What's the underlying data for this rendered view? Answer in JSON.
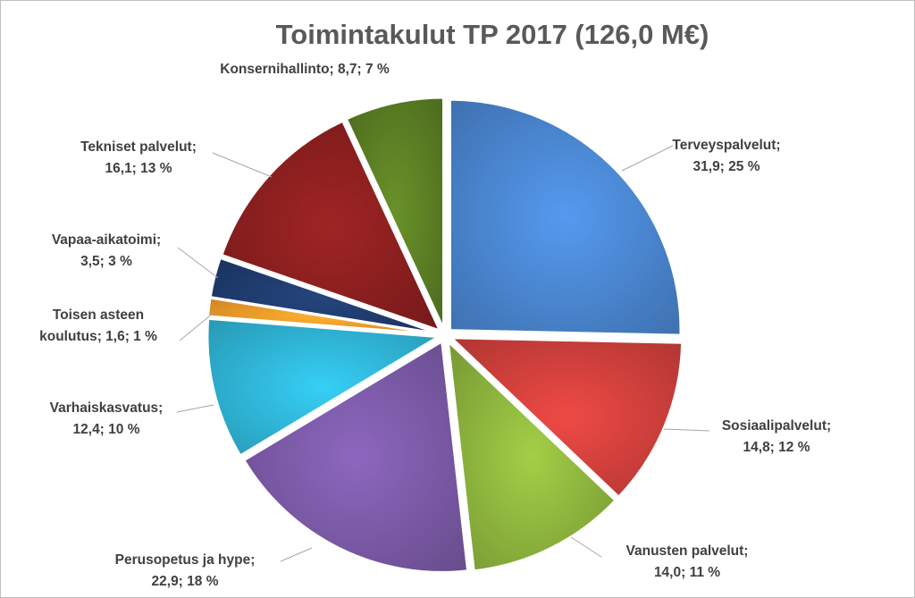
{
  "chart_data": {
    "type": "pie",
    "title": "Toimintakulut TP 2017 (126,0 M€)",
    "total": 126.0,
    "unit": "M€",
    "start_angle_deg": 0,
    "direction": "clockwise",
    "slices": [
      {
        "name": "Terveyspalvelut",
        "value": 31.9,
        "percent": 25,
        "color": "#4A86D0",
        "exploded": true,
        "label_lines": [
          "Terveyspalvelut;",
          "31,9; 25 %"
        ]
      },
      {
        "name": "Sosiaalipalvelut",
        "value": 14.8,
        "percent": 12,
        "color": "#D0403C",
        "exploded": true,
        "label_lines": [
          "Sosiaalipalvelut;",
          "14,8; 12 %"
        ]
      },
      {
        "name": "Vanusten palvelut",
        "value": 14.0,
        "percent": 11,
        "color": "#8DB43D",
        "exploded": true,
        "label_lines": [
          "Vanusten palvelut;",
          "14,0; 11 %"
        ]
      },
      {
        "name": "Perusopetus ja hype",
        "value": 22.9,
        "percent": 18,
        "color": "#7B5AA6",
        "exploded": true,
        "label_lines": [
          "Perusopetus ja hype;",
          "22,9; 18 %"
        ]
      },
      {
        "name": "Varhaiskasvatus",
        "value": 12.4,
        "percent": 10,
        "color": "#2FB4D6",
        "exploded": true,
        "label_lines": [
          "Varhaiskasvatus;",
          "12,4; 10 %"
        ]
      },
      {
        "name": "Toisen asteen koulutus",
        "value": 1.6,
        "percent": 1,
        "color": "#F79A2A",
        "exploded": true,
        "label_lines": [
          "Toisen asteen",
          "koulutus;  1,6; 1 %"
        ]
      },
      {
        "name": "Vapaa-aikatoimi",
        "value": 3.5,
        "percent": 3,
        "color": "#1F3C6E",
        "exploded": true,
        "label_lines": [
          "Vapaa-aikatoimi;",
          "3,5; 3 %"
        ]
      },
      {
        "name": "Tekniset palvelut",
        "value": 16.1,
        "percent": 13,
        "color": "#8B1F1F",
        "exploded": true,
        "label_lines": [
          "Tekniset palvelut;",
          "16,1; 13 %"
        ]
      },
      {
        "name": "Konsernihallinto",
        "value": 8.7,
        "percent": 7,
        "color": "#5B7F24",
        "exploded": true,
        "label_lines": [
          "Konsernihallinto;  8,7; 7 %"
        ]
      }
    ],
    "data_labels": "category; value; percent",
    "legend": "none"
  }
}
